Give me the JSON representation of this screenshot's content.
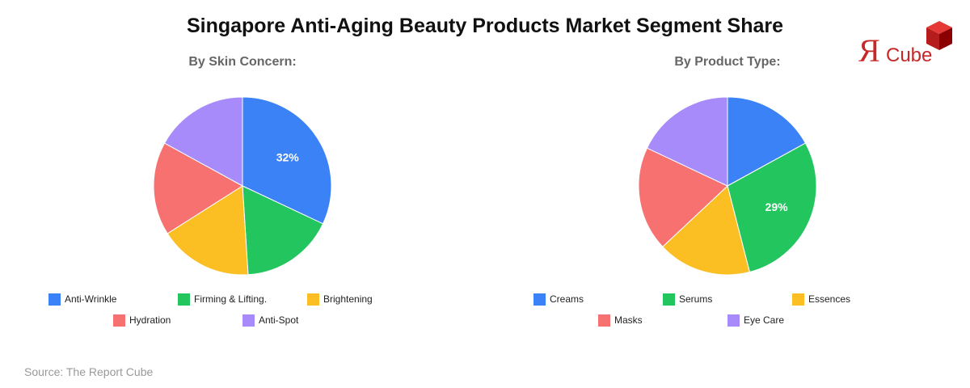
{
  "page_title": "Singapore Anti-Aging Beauty Products Market Segment Share",
  "logo": {
    "letter": "Я",
    "text": "Cube"
  },
  "source": "Source: The Report Cube",
  "chart_data": [
    {
      "type": "pie",
      "subtitle": "By Skin Concern:",
      "slices": [
        {
          "label": "Anti-Wrinkle",
          "value": 32,
          "color": "#3b82f6",
          "show_label": true
        },
        {
          "label": "Firming & Lifting.",
          "value": 17,
          "color": "#22c55e",
          "show_label": false
        },
        {
          "label": "Brightening",
          "value": 17,
          "color": "#fbbf24",
          "show_label": false
        },
        {
          "label": "Hydration",
          "value": 17,
          "color": "#f87171",
          "show_label": false
        },
        {
          "label": "Anti-Spot",
          "value": 17,
          "color": "#a78bfa",
          "show_label": false
        }
      ]
    },
    {
      "type": "pie",
      "subtitle": "By Product Type:",
      "slices": [
        {
          "label": "Creams",
          "value": 17,
          "color": "#3b82f6",
          "show_label": false
        },
        {
          "label": "Serums",
          "value": 29,
          "color": "#22c55e",
          "show_label": true
        },
        {
          "label": "Essences",
          "value": 17,
          "color": "#fbbf24",
          "show_label": false
        },
        {
          "label": "Masks",
          "value": 19,
          "color": "#f87171",
          "show_label": false
        },
        {
          "label": "Eye Care",
          "value": 18,
          "color": "#a78bfa",
          "show_label": false
        }
      ]
    }
  ]
}
